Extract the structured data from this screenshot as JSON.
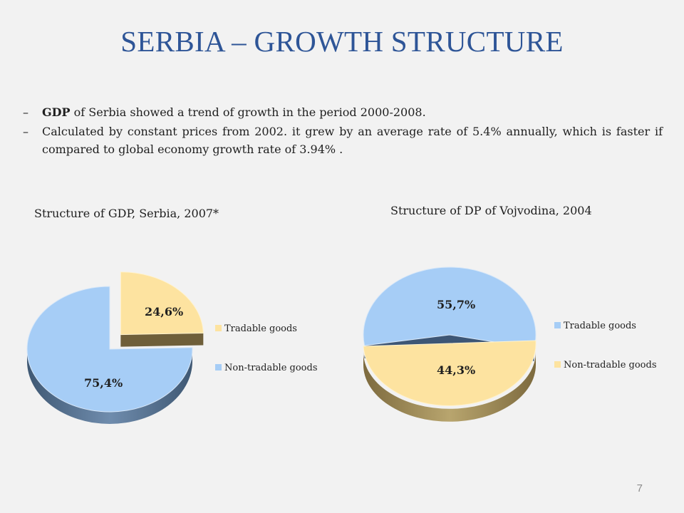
{
  "title": "SERBIA – GROWTH STRUCTURE",
  "bullets": [
    {
      "dash": "–",
      "bold": "GDP",
      "text": " of Serbia showed a trend of growth in the period 2000-2008."
    },
    {
      "dash": "–",
      "bold": "",
      "text": "Calculated by constant prices from 2002. it grew by an average rate of 5.4% annually, which is faster if compared to global economy growth rate of 3.94% ."
    }
  ],
  "colors": {
    "title": "#2e5597",
    "tradable": "#fde3a0",
    "non_tradable": "#a6cdf6",
    "tradable_side": "#8a7648",
    "non_tradable_side": "#48617e"
  },
  "chart_data": [
    {
      "type": "pie",
      "title": "Structure of GDP, Serbia,  2007*",
      "legend": [
        "Tradable goods",
        "Non-tradable goods"
      ],
      "legend_position": "right",
      "slices": [
        {
          "name": "Tradable goods",
          "value": 24.6,
          "label": "24,6%",
          "exploded": true
        },
        {
          "name": "Non-tradable goods",
          "value": 75.4,
          "label": "75,4%",
          "exploded": false
        }
      ]
    },
    {
      "type": "pie",
      "title": "Structure of DP of Vojvodina, 2004",
      "legend": [
        "Tradable goods",
        "Non-tradable goods"
      ],
      "legend_position": "right",
      "slices": [
        {
          "name": "Tradable goods",
          "value": 55.7,
          "label": "55,7%",
          "exploded": false
        },
        {
          "name": "Non-tradable goods",
          "value": 44.3,
          "label": "44,3%",
          "exploded": false
        }
      ]
    }
  ],
  "page_number": "7"
}
